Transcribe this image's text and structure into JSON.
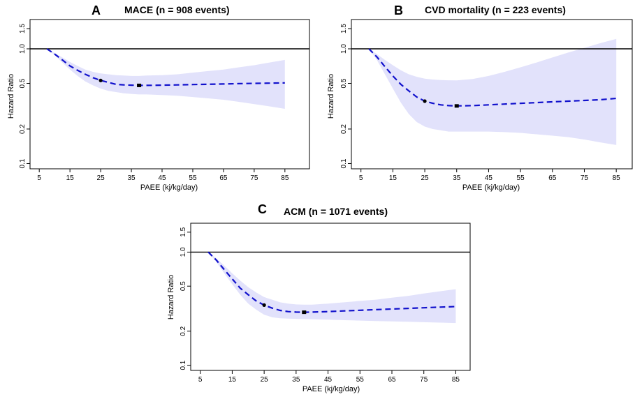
{
  "chart_data": [
    {
      "type": "line",
      "panel_letter": "A",
      "title": "MACE (n = 908 events)",
      "xlabel": "PAEE (kj/kg/day)",
      "ylabel": "Hazard Ratio",
      "x_ticks": [
        5,
        15,
        25,
        35,
        45,
        55,
        65,
        75,
        85
      ],
      "x_tick_labels": [
        "5",
        "15",
        "25",
        "35",
        "45",
        "55",
        "65",
        "75",
        "85"
      ],
      "y_ticks": [
        0.1,
        0.2,
        0.5,
        1.0,
        1.5
      ],
      "y_tick_labels": [
        "0.1",
        "0.2",
        "0.5",
        "1.0",
        "1.5"
      ],
      "xlim": [
        2,
        93
      ],
      "ylim": [
        0.09,
        1.8
      ],
      "y_scale": "log",
      "reference_line": 1.0,
      "series": [
        {
          "name": "Hazard ratio",
          "style": "dashed",
          "x": [
            7.5,
            10,
            12.5,
            15,
            17.5,
            20,
            22.5,
            25,
            27.5,
            30,
            32.5,
            35,
            37.5,
            40,
            45,
            50,
            55,
            60,
            65,
            70,
            75,
            80,
            85
          ],
          "y": [
            1.0,
            0.9,
            0.8,
            0.71,
            0.65,
            0.6,
            0.56,
            0.53,
            0.51,
            0.49,
            0.485,
            0.482,
            0.48,
            0.48,
            0.482,
            0.485,
            0.488,
            0.491,
            0.494,
            0.497,
            0.5,
            0.502,
            0.505
          ]
        },
        {
          "name": "95% CI lower",
          "x": [
            7.5,
            10,
            12.5,
            15,
            17.5,
            20,
            22.5,
            25,
            27.5,
            30,
            32.5,
            35,
            37.5,
            40,
            45,
            50,
            55,
            60,
            65,
            70,
            75,
            80,
            85
          ],
          "y": [
            1.0,
            0.88,
            0.76,
            0.66,
            0.58,
            0.52,
            0.48,
            0.45,
            0.43,
            0.42,
            0.41,
            0.405,
            0.4,
            0.4,
            0.395,
            0.39,
            0.38,
            0.37,
            0.36,
            0.345,
            0.33,
            0.315,
            0.3
          ]
        },
        {
          "name": "95% CI upper",
          "x": [
            7.5,
            10,
            12.5,
            15,
            17.5,
            20,
            22.5,
            25,
            27.5,
            30,
            32.5,
            35,
            37.5,
            40,
            45,
            50,
            55,
            60,
            65,
            70,
            75,
            80,
            85
          ],
          "y": [
            1.0,
            0.92,
            0.84,
            0.77,
            0.71,
            0.66,
            0.63,
            0.61,
            0.6,
            0.59,
            0.585,
            0.58,
            0.58,
            0.585,
            0.59,
            0.6,
            0.62,
            0.64,
            0.66,
            0.69,
            0.72,
            0.76,
            0.8
          ]
        }
      ],
      "markers": [
        {
          "x": 25,
          "y": 0.53,
          "shape": "circle"
        },
        {
          "x": 37.5,
          "y": 0.48,
          "shape": "square"
        }
      ]
    },
    {
      "type": "line",
      "panel_letter": "B",
      "title": "CVD mortality (n = 223 events)",
      "xlabel": "PAEE (kj/kg/day)",
      "ylabel": "Hazard Ratio",
      "x_ticks": [
        5,
        15,
        25,
        35,
        45,
        55,
        65,
        75,
        85
      ],
      "x_tick_labels": [
        "5",
        "15",
        "25",
        "35",
        "45",
        "55",
        "65",
        "75",
        "85"
      ],
      "y_ticks": [
        0.1,
        0.2,
        0.5,
        1.0,
        1.5
      ],
      "y_tick_labels": [
        "0.1",
        "0.2",
        "0.5",
        "1.0",
        "1.5"
      ],
      "xlim": [
        2,
        90
      ],
      "ylim": [
        0.09,
        1.8
      ],
      "y_scale": "log",
      "reference_line": 1.0,
      "series": [
        {
          "name": "Hazard ratio",
          "style": "dashed",
          "x": [
            7.5,
            10,
            12.5,
            15,
            17.5,
            20,
            22.5,
            25,
            27.5,
            30,
            32.5,
            35,
            40,
            45,
            50,
            55,
            60,
            65,
            70,
            75,
            80,
            85
          ],
          "y": [
            1.0,
            0.85,
            0.7,
            0.58,
            0.49,
            0.43,
            0.38,
            0.35,
            0.335,
            0.325,
            0.32,
            0.318,
            0.32,
            0.325,
            0.33,
            0.335,
            0.34,
            0.345,
            0.35,
            0.355,
            0.36,
            0.37
          ]
        },
        {
          "name": "95% CI lower",
          "x": [
            7.5,
            10,
            12.5,
            15,
            17.5,
            20,
            22.5,
            25,
            27.5,
            30,
            32.5,
            35,
            40,
            45,
            50,
            55,
            60,
            65,
            70,
            75,
            80,
            85
          ],
          "y": [
            1.0,
            0.8,
            0.6,
            0.45,
            0.34,
            0.27,
            0.23,
            0.21,
            0.2,
            0.195,
            0.19,
            0.19,
            0.19,
            0.19,
            0.188,
            0.185,
            0.18,
            0.175,
            0.17,
            0.162,
            0.153,
            0.145
          ]
        },
        {
          "name": "95% CI upper",
          "x": [
            7.5,
            10,
            12.5,
            15,
            17.5,
            20,
            22.5,
            25,
            27.5,
            30,
            32.5,
            35,
            40,
            45,
            50,
            55,
            60,
            65,
            70,
            75,
            80,
            85
          ],
          "y": [
            1.0,
            0.9,
            0.8,
            0.72,
            0.65,
            0.6,
            0.57,
            0.55,
            0.54,
            0.535,
            0.532,
            0.53,
            0.545,
            0.58,
            0.63,
            0.69,
            0.76,
            0.84,
            0.93,
            1.02,
            1.12,
            1.22
          ]
        }
      ],
      "markers": [
        {
          "x": 25,
          "y": 0.35,
          "shape": "circle"
        },
        {
          "x": 35,
          "y": 0.318,
          "shape": "square"
        }
      ]
    },
    {
      "type": "line",
      "panel_letter": "C",
      "title": "ACM (n = 1071 events)",
      "xlabel": "PAEE (kj/kg/day)",
      "ylabel": "Hazard Ratio",
      "x_ticks": [
        5,
        15,
        25,
        35,
        45,
        55,
        65,
        75,
        85
      ],
      "x_tick_labels": [
        "5",
        "15",
        "25",
        "35",
        "45",
        "55",
        "65",
        "75",
        "85"
      ],
      "y_ticks": [
        0.1,
        0.2,
        0.5,
        1.0,
        1.5
      ],
      "y_tick_labels": [
        "0.1",
        "0.2",
        "0.5",
        "1.0",
        "1.5"
      ],
      "xlim": [
        2,
        89.5
      ],
      "ylim": [
        0.09,
        1.8
      ],
      "y_scale": "log",
      "reference_line": 1.0,
      "series": [
        {
          "name": "Hazard ratio",
          "style": "dashed",
          "x": [
            7.5,
            10,
            12.5,
            15,
            17.5,
            20,
            22.5,
            25,
            27.5,
            30,
            32.5,
            35,
            37.5,
            40,
            45,
            50,
            55,
            60,
            65,
            70,
            75,
            80,
            85
          ],
          "y": [
            1.0,
            0.85,
            0.7,
            0.58,
            0.48,
            0.42,
            0.37,
            0.34,
            0.32,
            0.305,
            0.298,
            0.295,
            0.294,
            0.295,
            0.298,
            0.302,
            0.306,
            0.31,
            0.314,
            0.318,
            0.322,
            0.326,
            0.33
          ]
        },
        {
          "name": "95% CI lower",
          "x": [
            7.5,
            10,
            12.5,
            15,
            17.5,
            20,
            22.5,
            25,
            27.5,
            30,
            32.5,
            35,
            37.5,
            40,
            45,
            50,
            55,
            60,
            65,
            70,
            75,
            80,
            85
          ],
          "y": [
            1.0,
            0.82,
            0.65,
            0.52,
            0.42,
            0.35,
            0.31,
            0.28,
            0.265,
            0.26,
            0.258,
            0.257,
            0.256,
            0.255,
            0.253,
            0.25,
            0.248,
            0.246,
            0.244,
            0.242,
            0.24,
            0.238,
            0.236
          ]
        },
        {
          "name": "95% CI upper",
          "x": [
            7.5,
            10,
            12.5,
            15,
            17.5,
            20,
            22.5,
            25,
            27.5,
            30,
            32.5,
            35,
            37.5,
            40,
            45,
            50,
            55,
            60,
            65,
            70,
            75,
            80,
            85
          ],
          "y": [
            1.0,
            0.88,
            0.76,
            0.65,
            0.56,
            0.49,
            0.44,
            0.4,
            0.38,
            0.36,
            0.35,
            0.345,
            0.343,
            0.343,
            0.35,
            0.36,
            0.37,
            0.38,
            0.395,
            0.41,
            0.43,
            0.45,
            0.47
          ]
        }
      ],
      "markers": [
        {
          "x": 25,
          "y": 0.34,
          "shape": "circle"
        },
        {
          "x": 37.5,
          "y": 0.294,
          "shape": "square"
        }
      ]
    }
  ],
  "colors": {
    "band": "#e2e2fb",
    "line": "#1111cc",
    "axis": "#000000",
    "marker": "#000000"
  }
}
